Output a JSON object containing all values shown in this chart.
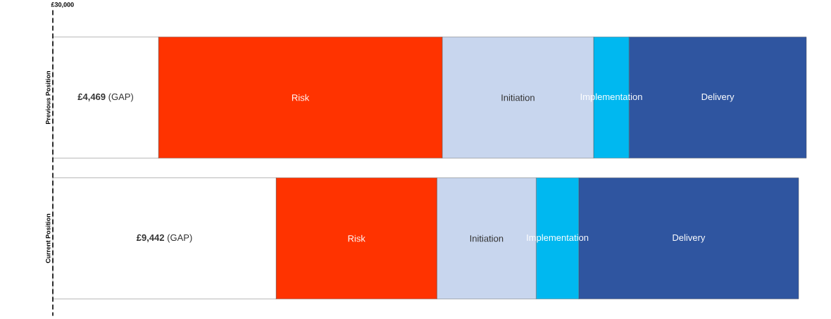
{
  "chart_data": {
    "type": "bar",
    "orientation": "horizontal",
    "stacked": true,
    "tick_labels": "y",
    "categories": [
      "Previous Position",
      "Current Position"
    ],
    "series": [
      {
        "name": "(GAP)",
        "color": "#ffffff",
        "values": [
          4469,
          9442
        ],
        "value_labels": [
          "£4,469",
          "£9,442"
        ]
      },
      {
        "name": "Risk",
        "color": "#ff3300",
        "values": [
          12000,
          6800
        ]
      },
      {
        "name": "Initiation",
        "color": "#c8d6ee",
        "values": [
          6400,
          4200
        ]
      },
      {
        "name": "Implementation",
        "color": "#00b8f0",
        "values": [
          1500,
          1800
        ]
      },
      {
        "name": "Delivery",
        "color": "#2f55a0",
        "values": [
          7500,
          9300
        ]
      }
    ],
    "annotations": [
      "£30,000"
    ]
  }
}
